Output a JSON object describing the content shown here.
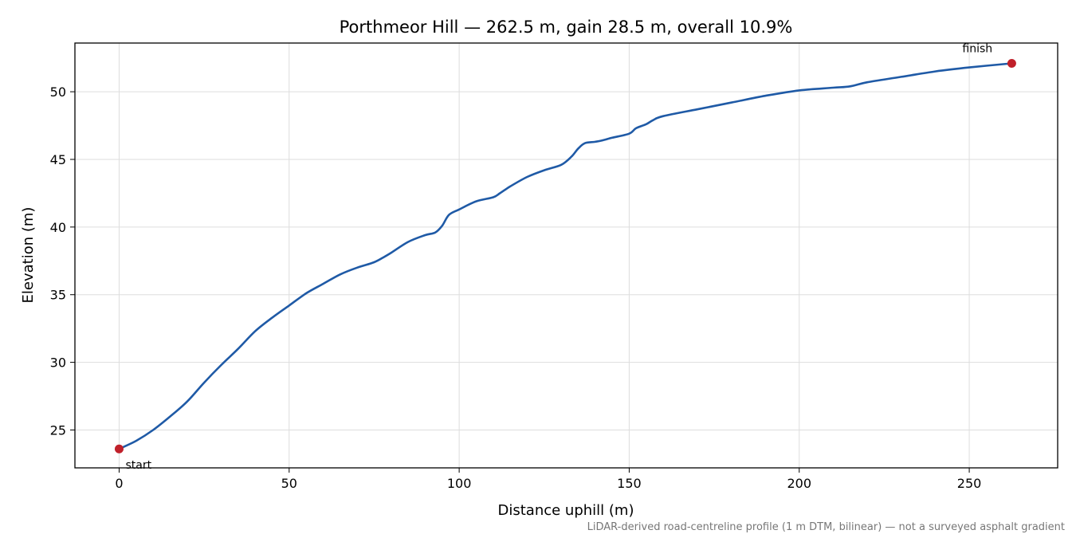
{
  "chart_data": {
    "type": "line",
    "title": "Porthmeor Hill — 262.5 m, gain 28.5 m, overall 10.9%",
    "xlabel": "Distance uphill (m)",
    "ylabel": "Elevation (m)",
    "footnote": "LiDAR-derived road-centreline profile (1 m DTM, bilinear) — not a surveyed asphalt gradient",
    "xlim": [
      -13,
      276
    ],
    "ylim": [
      22.2,
      53.6
    ],
    "x_ticks": [
      0,
      50,
      100,
      150,
      200,
      250
    ],
    "y_ticks": [
      25,
      30,
      35,
      40,
      45,
      50
    ],
    "grid": true,
    "line_color": "#1f5aa6",
    "marker_color": "#c0202a",
    "series": [
      {
        "x": [
          0,
          5,
          10,
          15,
          20,
          25,
          30,
          35,
          40,
          45,
          50,
          55,
          60,
          65,
          70,
          75,
          78,
          80,
          85,
          90,
          93,
          95,
          97,
          100,
          105,
          110,
          112,
          115,
          120,
          125,
          130,
          133,
          135,
          137,
          140,
          142,
          145,
          150,
          152,
          155,
          157,
          160,
          170,
          180,
          190,
          200,
          210,
          215,
          220,
          230,
          240,
          250,
          262.5
        ],
        "y": [
          23.6,
          24.2,
          25.0,
          26.0,
          27.1,
          28.5,
          29.8,
          31.0,
          32.3,
          33.3,
          34.2,
          35.1,
          35.8,
          36.5,
          37.0,
          37.4,
          37.8,
          38.1,
          38.9,
          39.4,
          39.6,
          40.1,
          40.9,
          41.3,
          41.9,
          42.2,
          42.5,
          43.0,
          43.7,
          44.2,
          44.6,
          45.2,
          45.8,
          46.2,
          46.3,
          46.4,
          46.6,
          46.9,
          47.3,
          47.6,
          47.9,
          48.2,
          48.7,
          49.2,
          49.7,
          50.1,
          50.3,
          50.4,
          50.7,
          51.1,
          51.5,
          51.8,
          52.1
        ]
      }
    ],
    "annotations": [
      {
        "text": "start",
        "x": 0,
        "y": 23.6
      },
      {
        "text": "finish",
        "x": 262.5,
        "y": 52.1
      }
    ]
  }
}
